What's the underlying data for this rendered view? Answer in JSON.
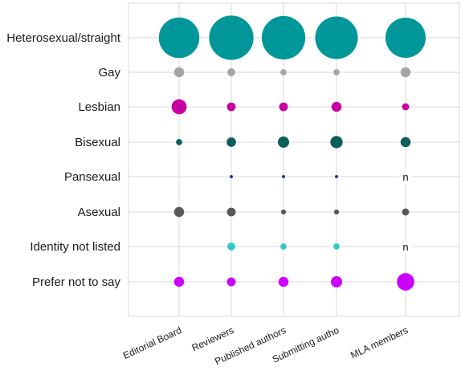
{
  "chart_data": {
    "type": "scatter",
    "subtype": "bubble-matrix",
    "title": "",
    "xlabel": "",
    "ylabel": "",
    "grid": true,
    "legend": "none",
    "categories": [
      "Editorial Board",
      "Reviewers",
      "Published authors",
      "Submitting autho",
      "MLA members"
    ],
    "rows": [
      {
        "label": "Heterosexual/straight",
        "color": "#00979a",
        "values": [
          65,
          78,
          75,
          72,
          64
        ]
      },
      {
        "label": "Gay",
        "color": "#a6a6a6",
        "values": [
          4,
          2.5,
          1.5,
          1.5,
          4
        ]
      },
      {
        "label": "Lesbian",
        "color": "#c800a1",
        "values": [
          9,
          3,
          3,
          4,
          2
        ]
      },
      {
        "label": "Bisexual",
        "color": "#0b5e5c",
        "values": [
          1.5,
          3.5,
          5,
          6,
          4
        ]
      },
      {
        "label": "Pansexual",
        "color": "#1f3a93",
        "values": [
          0,
          0.3,
          0.3,
          0.3,
          null
        ]
      },
      {
        "label": "Asexual",
        "color": "#595959",
        "values": [
          4,
          3,
          1,
          1,
          2
        ]
      },
      {
        "label": "Identity not listed",
        "color": "#33c9c9",
        "values": [
          0,
          2.5,
          1.5,
          1.5,
          null
        ]
      },
      {
        "label": "Prefer not to say",
        "color": "#cc00ff",
        "values": [
          4,
          3,
          4,
          5,
          12
        ]
      }
    ],
    "missing_label": "n"
  }
}
